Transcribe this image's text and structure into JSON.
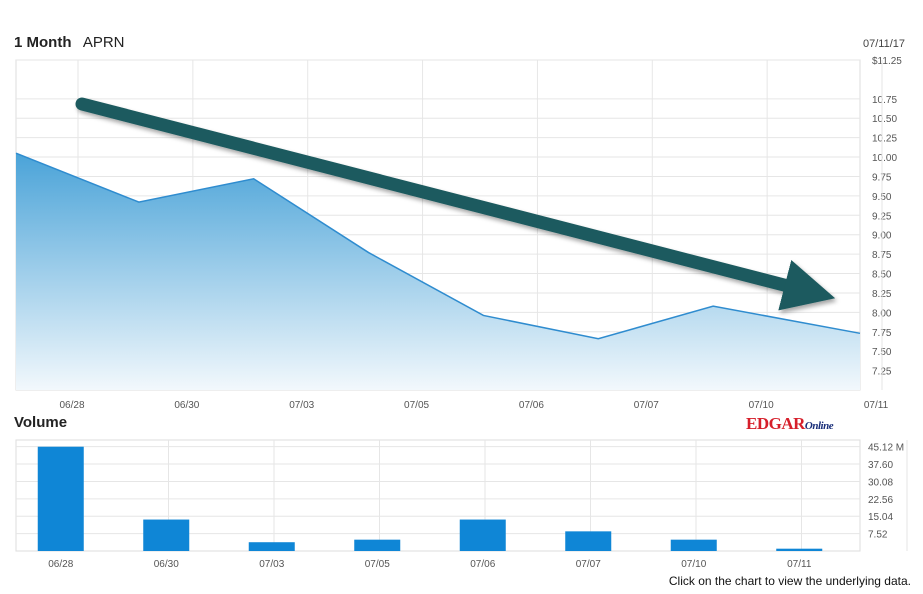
{
  "header": {
    "period": "1 Month",
    "ticker": "APRN",
    "date": "07/11/17"
  },
  "volume_title": "Volume",
  "brand": {
    "edgar": "EDGAR",
    "online": "Online"
  },
  "footer_note": "Click on the chart to view the underlying data.",
  "colors": {
    "area_top": "#4aa3d8",
    "area_bottom": "#f2f8fc",
    "line": "#2f8ccf",
    "volume_bar": "#0f86d6",
    "arrow": "#1c5a5e"
  },
  "chart_data": [
    {
      "type": "area",
      "title": "1 Month APRN",
      "x": [
        "06/28",
        "06/30",
        "07/03",
        "07/05",
        "07/06",
        "07/07",
        "07/10",
        "07/11"
      ],
      "values": [
        10.05,
        9.42,
        9.72,
        8.77,
        7.96,
        7.66,
        8.08,
        7.73
      ],
      "y_ticks": [
        "$11.25",
        "10.75",
        "10.50",
        "10.25",
        "10.00",
        "9.75",
        "9.50",
        "9.25",
        "9.00",
        "8.75",
        "8.50",
        "8.25",
        "8.00",
        "7.75",
        "7.50",
        "7.25"
      ],
      "ylim": [
        7.0,
        11.25
      ],
      "grid": true
    },
    {
      "type": "bar",
      "title": "Volume",
      "categories": [
        "06/28",
        "06/30",
        "07/03",
        "07/05",
        "07/06",
        "07/07",
        "07/10",
        "07/11"
      ],
      "values": [
        45.1,
        13.6,
        3.8,
        4.9,
        13.6,
        8.5,
        4.9,
        1.0
      ],
      "y_ticks": [
        "45.12 M",
        "37.60",
        "30.08",
        "22.56",
        "15.04",
        "7.52"
      ],
      "ylim": [
        0,
        48
      ],
      "grid": true
    }
  ]
}
